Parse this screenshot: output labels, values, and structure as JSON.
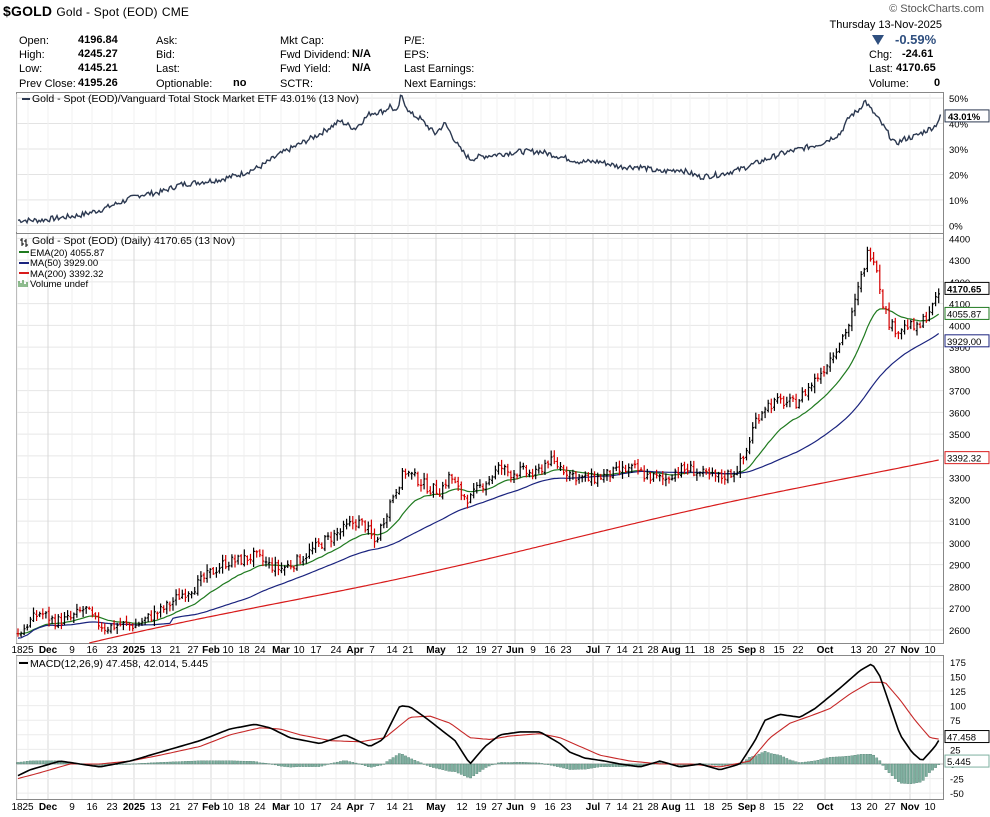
{
  "header": {
    "symbol": "$GOLD",
    "description": "Gold - Spot (EOD)",
    "exchange": "CME",
    "brand": "© StockCharts.com",
    "date": "Thursday  13-Nov-2025"
  },
  "quote": {
    "col1": [
      {
        "label": "Open:",
        "value": "4196.84"
      },
      {
        "label": "High:",
        "value": "4245.27"
      },
      {
        "label": "Low:",
        "value": "4145.21"
      },
      {
        "label": "Prev Close:",
        "value": "4195.26"
      }
    ],
    "col2": [
      {
        "label": "Ask:",
        "value": ""
      },
      {
        "label": "Bid:",
        "value": ""
      },
      {
        "label": "Last:",
        "value": ""
      },
      {
        "label": "Optionable:",
        "value": "no"
      }
    ],
    "col3": [
      {
        "label": "Mkt Cap:",
        "value": ""
      },
      {
        "label": "Fwd Dividend:",
        "value": "N/A"
      },
      {
        "label": "Fwd Yield:",
        "value": "N/A"
      },
      {
        "label": "SCTR:",
        "value": ""
      }
    ],
    "col4": [
      {
        "label": "P/E:",
        "value": ""
      },
      {
        "label": "EPS:",
        "value": ""
      },
      {
        "label": "Last Earnings:",
        "value": ""
      },
      {
        "label": "Next Earnings:",
        "value": ""
      }
    ],
    "change_pct": "-0.59%",
    "col5": [
      {
        "label": "Chg:",
        "value": "-24.61"
      },
      {
        "label": "Last:",
        "value": "4170.65"
      },
      {
        "label": "Volume:",
        "value": "0"
      }
    ]
  },
  "colors": {
    "price_up": "#000000",
    "price_down": "#d40000",
    "ema": "#1f7a1f",
    "ma50": "#1a237e",
    "ma200": "#d81b1b",
    "relative": "#2b3850",
    "macd": "#000000",
    "signal": "#c62828",
    "hist": "#7fb0a0"
  },
  "chart_data": [
    {
      "type": "line",
      "title": "Gold - Spot (EOD)/Vanguard Total Stock Market ETF 43.01% (13 Nov)",
      "ylabel": "%",
      "ylim": [
        -3,
        52
      ],
      "y_ticks": [
        "50%",
        "40%",
        "30%",
        "20%",
        "10%",
        "0%"
      ],
      "last_label": "43.01%",
      "anchors": [
        [
          0,
          0
        ],
        [
          10,
          2
        ],
        [
          20,
          2
        ],
        [
          30,
          2
        ],
        [
          40,
          2
        ],
        [
          60,
          3
        ],
        [
          80,
          4
        ],
        [
          100,
          6
        ],
        [
          120,
          9
        ],
        [
          140,
          12
        ],
        [
          160,
          13
        ],
        [
          180,
          16
        ],
        [
          200,
          17
        ],
        [
          220,
          18
        ],
        [
          240,
          20
        ],
        [
          260,
          23
        ],
        [
          280,
          28
        ],
        [
          300,
          32
        ],
        [
          320,
          36
        ],
        [
          340,
          41
        ],
        [
          355,
          38
        ],
        [
          370,
          44
        ],
        [
          385,
          45
        ],
        [
          390,
          47
        ],
        [
          397,
          44
        ],
        [
          401,
          51
        ],
        [
          410,
          44
        ],
        [
          420,
          42
        ],
        [
          435,
          36
        ],
        [
          445,
          40
        ],
        [
          460,
          30
        ],
        [
          470,
          26
        ],
        [
          480,
          27
        ],
        [
          500,
          28
        ],
        [
          520,
          29
        ],
        [
          540,
          29
        ],
        [
          560,
          27
        ],
        [
          580,
          25
        ],
        [
          600,
          25
        ],
        [
          620,
          23
        ],
        [
          640,
          23
        ],
        [
          660,
          21
        ],
        [
          680,
          22
        ],
        [
          700,
          19
        ],
        [
          720,
          20
        ],
        [
          740,
          22
        ],
        [
          760,
          25
        ],
        [
          780,
          28
        ],
        [
          800,
          30
        ],
        [
          820,
          32
        ],
        [
          840,
          36
        ],
        [
          850,
          43
        ],
        [
          858,
          45
        ],
        [
          865,
          49
        ],
        [
          870,
          46
        ],
        [
          878,
          42
        ],
        [
          885,
          38
        ],
        [
          895,
          32
        ],
        [
          905,
          34
        ],
        [
          915,
          35
        ],
        [
          925,
          37
        ],
        [
          935,
          39
        ],
        [
          941,
          43
        ]
      ]
    },
    {
      "type": "ohlc",
      "title": "Gold - Spot (EOD) (Daily) 4170.65 (13 Nov)",
      "legend": [
        {
          "name": "EMA(20) 4055.87",
          "color": "#1f7a1f"
        },
        {
          "name": "MA(50) 3929.00",
          "color": "#1a237e"
        },
        {
          "name": "MA(200) 3392.32",
          "color": "#d81b1b"
        },
        {
          "name": "Volume undef",
          "color": "#1f7a1f"
        }
      ],
      "ylim": [
        2540,
        4420
      ],
      "y_ticks": [
        4400,
        4300,
        4200,
        4100,
        4000,
        3900,
        3800,
        3700,
        3600,
        3500,
        3400,
        3300,
        3200,
        3100,
        3000,
        2900,
        2800,
        2700,
        2600
      ],
      "value_labels": {
        "last": "4170.65",
        "ema": "4055.87",
        "ma50": "3929.00",
        "ma200": "3392.32"
      },
      "anchors": [
        [
          18,
          2580
        ],
        [
          30,
          2640
        ],
        [
          40,
          2680
        ],
        [
          55,
          2640
        ],
        [
          70,
          2650
        ],
        [
          85,
          2700
        ],
        [
          95,
          2640
        ],
        [
          105,
          2610
        ],
        [
          120,
          2625
        ],
        [
          135,
          2620
        ],
        [
          150,
          2660
        ],
        [
          165,
          2700
        ],
        [
          180,
          2760
        ],
        [
          195,
          2800
        ],
        [
          210,
          2860
        ],
        [
          225,
          2910
        ],
        [
          240,
          2920
        ],
        [
          255,
          2940
        ],
        [
          268,
          2900
        ],
        [
          280,
          2880
        ],
        [
          295,
          2910
        ],
        [
          310,
          2960
        ],
        [
          325,
          3010
        ],
        [
          340,
          3050
        ],
        [
          355,
          3100
        ],
        [
          365,
          3080
        ],
        [
          375,
          3000
        ],
        [
          383,
          3100
        ],
        [
          393,
          3220
        ],
        [
          405,
          3330
        ],
        [
          418,
          3290
        ],
        [
          430,
          3250
        ],
        [
          440,
          3240
        ],
        [
          450,
          3310
        ],
        [
          460,
          3230
        ],
        [
          470,
          3200
        ],
        [
          478,
          3250
        ],
        [
          490,
          3300
        ],
        [
          500,
          3350
        ],
        [
          510,
          3320
        ],
        [
          522,
          3330
        ],
        [
          535,
          3310
        ],
        [
          548,
          3380
        ],
        [
          560,
          3350
        ],
        [
          570,
          3320
        ],
        [
          580,
          3300
        ],
        [
          590,
          3290
        ],
        [
          605,
          3310
        ],
        [
          620,
          3330
        ],
        [
          635,
          3340
        ],
        [
          645,
          3310
        ],
        [
          655,
          3300
        ],
        [
          665,
          3290
        ],
        [
          675,
          3330
        ],
        [
          690,
          3340
        ],
        [
          705,
          3310
        ],
        [
          720,
          3300
        ],
        [
          735,
          3330
        ],
        [
          745,
          3400
        ],
        [
          755,
          3560
        ],
        [
          765,
          3630
        ],
        [
          780,
          3650
        ],
        [
          795,
          3640
        ],
        [
          810,
          3720
        ],
        [
          825,
          3810
        ],
        [
          840,
          3930
        ],
        [
          850,
          4010
        ],
        [
          860,
          4200
        ],
        [
          868,
          4340
        ],
        [
          875,
          4310
        ],
        [
          882,
          4120
        ],
        [
          890,
          4000
        ],
        [
          898,
          3980
        ],
        [
          908,
          4000
        ],
        [
          918,
          3980
        ],
        [
          928,
          4060
        ],
        [
          935,
          4100
        ],
        [
          941,
          4170
        ]
      ]
    },
    {
      "type": "macd",
      "title": "MACD(12,26,9) 47.458, 42.014, 5.445",
      "ylim": [
        -60,
        185
      ],
      "y_ticks": [
        175,
        150,
        125,
        100,
        75,
        50,
        25,
        0,
        -25,
        -50
      ],
      "value_labels": {
        "macd": "47.458",
        "hist": "5.445"
      },
      "macd_anchors": [
        [
          18,
          -20
        ],
        [
          30,
          -10
        ],
        [
          60,
          5
        ],
        [
          100,
          -5
        ],
        [
          130,
          5
        ],
        [
          160,
          20
        ],
        [
          200,
          40
        ],
        [
          230,
          60
        ],
        [
          255,
          68
        ],
        [
          270,
          62
        ],
        [
          290,
          45
        ],
        [
          320,
          35
        ],
        [
          345,
          50
        ],
        [
          370,
          30
        ],
        [
          383,
          42
        ],
        [
          400,
          100
        ],
        [
          410,
          98
        ],
        [
          425,
          80
        ],
        [
          440,
          60
        ],
        [
          455,
          40
        ],
        [
          470,
          0
        ],
        [
          485,
          30
        ],
        [
          500,
          50
        ],
        [
          520,
          55
        ],
        [
          540,
          55
        ],
        [
          560,
          35
        ],
        [
          570,
          20
        ],
        [
          585,
          10
        ],
        [
          605,
          5
        ],
        [
          620,
          0
        ],
        [
          640,
          -5
        ],
        [
          660,
          5
        ],
        [
          680,
          -5
        ],
        [
          700,
          0
        ],
        [
          720,
          -10
        ],
        [
          740,
          0
        ],
        [
          755,
          40
        ],
        [
          765,
          75
        ],
        [
          780,
          85
        ],
        [
          800,
          80
        ],
        [
          815,
          95
        ],
        [
          840,
          130
        ],
        [
          860,
          160
        ],
        [
          872,
          172
        ],
        [
          880,
          150
        ],
        [
          890,
          100
        ],
        [
          900,
          50
        ],
        [
          912,
          20
        ],
        [
          922,
          5
        ],
        [
          935,
          30
        ],
        [
          941,
          47
        ]
      ],
      "signal_anchors": [
        [
          18,
          -25
        ],
        [
          40,
          -15
        ],
        [
          70,
          0
        ],
        [
          100,
          0
        ],
        [
          130,
          5
        ],
        [
          160,
          15
        ],
        [
          200,
          30
        ],
        [
          230,
          50
        ],
        [
          260,
          62
        ],
        [
          280,
          60
        ],
        [
          300,
          50
        ],
        [
          330,
          40
        ],
        [
          360,
          38
        ],
        [
          385,
          45
        ],
        [
          410,
          80
        ],
        [
          430,
          82
        ],
        [
          450,
          70
        ],
        [
          470,
          45
        ],
        [
          490,
          42
        ],
        [
          510,
          48
        ],
        [
          540,
          52
        ],
        [
          560,
          45
        ],
        [
          580,
          30
        ],
        [
          600,
          15
        ],
        [
          630,
          5
        ],
        [
          660,
          0
        ],
        [
          690,
          0
        ],
        [
          720,
          -5
        ],
        [
          750,
          5
        ],
        [
          770,
          45
        ],
        [
          790,
          70
        ],
        [
          810,
          82
        ],
        [
          830,
          95
        ],
        [
          850,
          120
        ],
        [
          870,
          140
        ],
        [
          885,
          140
        ],
        [
          900,
          110
        ],
        [
          915,
          75
        ],
        [
          930,
          45
        ],
        [
          941,
          42
        ]
      ]
    }
  ],
  "x_axis": {
    "labels": [
      {
        "t": "18",
        "x": 17
      },
      {
        "t": "25",
        "x": 28
      },
      {
        "t": "Dec",
        "x": 48,
        "b": true
      },
      {
        "t": "9",
        "x": 72
      },
      {
        "t": "16",
        "x": 92
      },
      {
        "t": "23",
        "x": 112
      },
      {
        "t": "2025",
        "x": 134,
        "b": true
      },
      {
        "t": "13",
        "x": 156
      },
      {
        "t": "21",
        "x": 175
      },
      {
        "t": "27",
        "x": 193
      },
      {
        "t": "Feb",
        "x": 211,
        "b": true
      },
      {
        "t": "10",
        "x": 228
      },
      {
        "t": "18",
        "x": 244
      },
      {
        "t": "24",
        "x": 260
      },
      {
        "t": "Mar",
        "x": 281,
        "b": true
      },
      {
        "t": "10",
        "x": 299
      },
      {
        "t": "17",
        "x": 316
      },
      {
        "t": "24",
        "x": 336
      },
      {
        "t": "Apr",
        "x": 355,
        "b": true
      },
      {
        "t": "7",
        "x": 372
      },
      {
        "t": "14",
        "x": 392
      },
      {
        "t": "21",
        "x": 408
      },
      {
        "t": "May",
        "x": 436,
        "b": true
      },
      {
        "t": "12",
        "x": 462
      },
      {
        "t": "19",
        "x": 481
      },
      {
        "t": "27",
        "x": 497
      },
      {
        "t": "Jun",
        "x": 515,
        "b": true
      },
      {
        "t": "9",
        "x": 533
      },
      {
        "t": "16",
        "x": 550
      },
      {
        "t": "23",
        "x": 566
      },
      {
        "t": "Jul",
        "x": 593,
        "b": true
      },
      {
        "t": "7",
        "x": 608
      },
      {
        "t": "14",
        "x": 622
      },
      {
        "t": "21",
        "x": 638
      },
      {
        "t": "28",
        "x": 653
      },
      {
        "t": "Aug",
        "x": 671,
        "b": true
      },
      {
        "t": "11",
        "x": 690
      },
      {
        "t": "18",
        "x": 709
      },
      {
        "t": "25",
        "x": 727
      },
      {
        "t": "Sep",
        "x": 747,
        "b": true
      },
      {
        "t": "8",
        "x": 762
      },
      {
        "t": "15",
        "x": 779
      },
      {
        "t": "22",
        "x": 798
      },
      {
        "t": "Oct",
        "x": 825,
        "b": true
      },
      {
        "t": "13",
        "x": 856
      },
      {
        "t": "20",
        "x": 872
      },
      {
        "t": "27",
        "x": 890
      },
      {
        "t": "Nov",
        "x": 910,
        "b": true
      },
      {
        "t": "10",
        "x": 930
      }
    ]
  }
}
